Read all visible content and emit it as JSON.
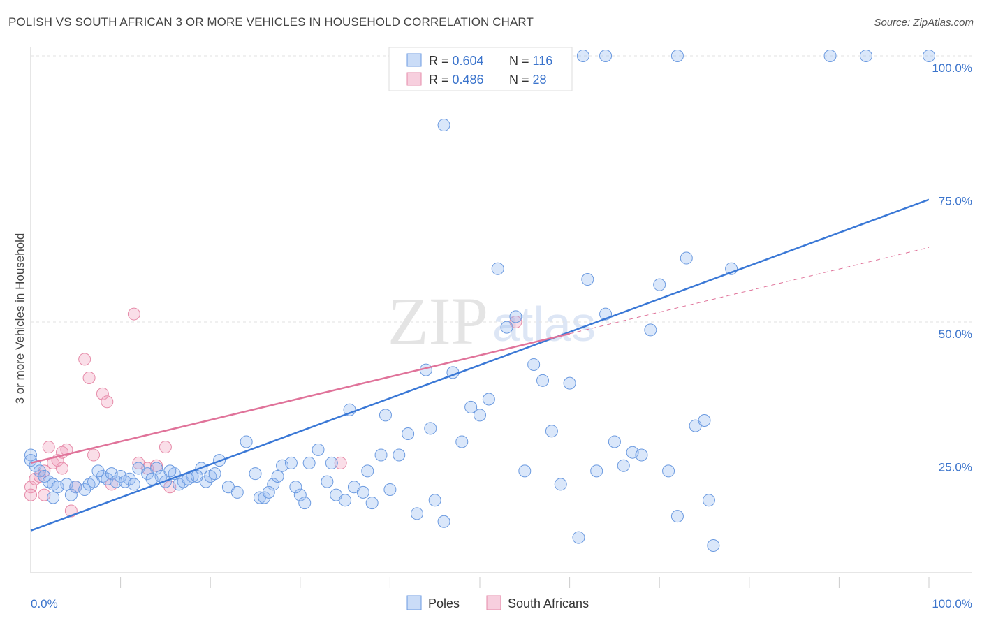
{
  "title": "POLISH VS SOUTH AFRICAN 3 OR MORE VEHICLES IN HOUSEHOLD CORRELATION CHART",
  "source": "Source: ZipAtlas.com",
  "watermark": {
    "zip": "ZIP",
    "atlas": "atlas"
  },
  "legend_top": [
    {
      "r_label": "R = ",
      "r_value": "0.604",
      "n_label": "N = ",
      "n_value": "116",
      "color": "#6b9ae0"
    },
    {
      "r_label": "R = ",
      "r_value": "0.486",
      "n_label": "N = ",
      "n_value": "28",
      "color": "#e68aa8"
    }
  ],
  "legend_bottom": [
    {
      "label": "Poles",
      "color": "#6b9ae0"
    },
    {
      "label": "South Africans",
      "color": "#e68aa8"
    }
  ],
  "colors": {
    "blue": "#3a78d6",
    "pink": "#e0739a",
    "blue_fill": "rgba(150,185,240,0.35)",
    "pink_fill": "rgba(240,160,190,0.35)",
    "value_text": "#3b74cc"
  },
  "chart_data": {
    "type": "scatter",
    "title": "POLISH VS SOUTH AFRICAN 3 OR MORE VEHICLES IN HOUSEHOLD CORRELATION CHART",
    "xlabel": "",
    "ylabel": "3 or more Vehicles in Household",
    "xlim": [
      0,
      100
    ],
    "ylim": [
      0,
      100
    ],
    "x_tick_labels": [
      "0.0%",
      "100.0%"
    ],
    "y_ticks": [
      25,
      50,
      75,
      100
    ],
    "y_tick_labels": [
      "25.0%",
      "50.0%",
      "75.0%",
      "100.0%"
    ],
    "series": [
      {
        "name": "Poles",
        "r": 0.604,
        "n": 116,
        "trend": {
          "x0": 0,
          "y0": 10.8,
          "x1": 100,
          "y1": 73.0
        },
        "points": [
          [
            0,
            25
          ],
          [
            0,
            24
          ],
          [
            0.5,
            23
          ],
          [
            1,
            22
          ],
          [
            1.5,
            21
          ],
          [
            2,
            20
          ],
          [
            2.5,
            19.5
          ],
          [
            3,
            19
          ],
          [
            4,
            19.5
          ],
          [
            5,
            19
          ],
          [
            6,
            18.5
          ],
          [
            6.5,
            19.5
          ],
          [
            7,
            20
          ],
          [
            8,
            21
          ],
          [
            8.5,
            20.5
          ],
          [
            9,
            21.5
          ],
          [
            10,
            21
          ],
          [
            11,
            20.5
          ],
          [
            12,
            22.5
          ],
          [
            13,
            21.5
          ],
          [
            13.5,
            20.5
          ],
          [
            14,
            22.5
          ],
          [
            15,
            20
          ],
          [
            16,
            21.5
          ],
          [
            16.5,
            19.5
          ],
          [
            17,
            20
          ],
          [
            18,
            21
          ],
          [
            19,
            22.5
          ],
          [
            19.5,
            20
          ],
          [
            20,
            21
          ],
          [
            20.5,
            21.5
          ],
          [
            21,
            24
          ],
          [
            22,
            19
          ],
          [
            23,
            18
          ],
          [
            24,
            27.5
          ],
          [
            25,
            21.5
          ],
          [
            25.5,
            17
          ],
          [
            26,
            17
          ],
          [
            27,
            19.5
          ],
          [
            27.5,
            21
          ],
          [
            28,
            23
          ],
          [
            29,
            23.5
          ],
          [
            30,
            17.5
          ],
          [
            30.5,
            16
          ],
          [
            31,
            23.5
          ],
          [
            32,
            26
          ],
          [
            33,
            20
          ],
          [
            33.5,
            23.5
          ],
          [
            34,
            17.5
          ],
          [
            35,
            16.5
          ],
          [
            35.5,
            33.5
          ],
          [
            36,
            19
          ],
          [
            37,
            18
          ],
          [
            37.5,
            22
          ],
          [
            38,
            16
          ],
          [
            39,
            25
          ],
          [
            39.5,
            32.5
          ],
          [
            40,
            18.5
          ],
          [
            41,
            25
          ],
          [
            42,
            29
          ],
          [
            43,
            14
          ],
          [
            44,
            41
          ],
          [
            45,
            16.5
          ],
          [
            46,
            12.5
          ],
          [
            47,
            40.5
          ],
          [
            48,
            27.5
          ],
          [
            49,
            34
          ],
          [
            50,
            32.5
          ],
          [
            51,
            35.5
          ],
          [
            52,
            60
          ],
          [
            53,
            49
          ],
          [
            54,
            51
          ],
          [
            55,
            22
          ],
          [
            56,
            42
          ],
          [
            57,
            39
          ],
          [
            58,
            29.5
          ],
          [
            59,
            19.5
          ],
          [
            60,
            38.5
          ],
          [
            61,
            9.5
          ],
          [
            62,
            58
          ],
          [
            63,
            22
          ],
          [
            64,
            51.5
          ],
          [
            65,
            27.5
          ],
          [
            66,
            23
          ],
          [
            67,
            25.5
          ],
          [
            68,
            25
          ],
          [
            69,
            48.5
          ],
          [
            70,
            57
          ],
          [
            71,
            22
          ],
          [
            72,
            13.5
          ],
          [
            73,
            62
          ],
          [
            74,
            30.5
          ],
          [
            75,
            31.5
          ],
          [
            76,
            8
          ],
          [
            78,
            60
          ],
          [
            75.5,
            16.5
          ],
          [
            61.5,
            100
          ],
          [
            64,
            100
          ],
          [
            72,
            100
          ],
          [
            89,
            100
          ],
          [
            93,
            100
          ],
          [
            100,
            100
          ],
          [
            46,
            87
          ],
          [
            2.5,
            17
          ],
          [
            4.5,
            17.5
          ],
          [
            7.5,
            22
          ],
          [
            9.5,
            20
          ],
          [
            10.5,
            20
          ],
          [
            11.5,
            19.5
          ],
          [
            14.5,
            21
          ],
          [
            15.5,
            22
          ],
          [
            17.5,
            20.5
          ],
          [
            18.5,
            21
          ],
          [
            26.5,
            18
          ],
          [
            29.5,
            19
          ],
          [
            44.5,
            30
          ]
        ]
      },
      {
        "name": "South Africans",
        "r": 0.486,
        "n": 28,
        "trend": {
          "x0": 0,
          "y0": 23.5,
          "x1": 60,
          "y1": 47.8
        },
        "dashed_extension": {
          "x0": 60,
          "y0": 47.8,
          "x1": 100,
          "y1": 64
        },
        "points": [
          [
            0,
            19
          ],
          [
            0,
            17.5
          ],
          [
            0.5,
            20.5
          ],
          [
            1,
            21
          ],
          [
            1.5,
            22
          ],
          [
            2,
            26.5
          ],
          [
            2.5,
            23.5
          ],
          [
            3,
            24
          ],
          [
            3.5,
            25.5
          ],
          [
            3.5,
            22.5
          ],
          [
            4,
            26
          ],
          [
            4.5,
            14.5
          ],
          [
            5,
            19
          ],
          [
            6,
            43
          ],
          [
            6.5,
            39.5
          ],
          [
            7,
            25
          ],
          [
            8,
            36.5
          ],
          [
            8.5,
            35
          ],
          [
            9,
            19.5
          ],
          [
            11.5,
            51.5
          ],
          [
            12,
            23.5
          ],
          [
            13,
            22.5
          ],
          [
            14,
            23
          ],
          [
            15,
            26.5
          ],
          [
            15.5,
            19
          ],
          [
            34.5,
            23.5
          ],
          [
            54,
            50
          ],
          [
            1.5,
            17.5
          ]
        ]
      }
    ]
  }
}
